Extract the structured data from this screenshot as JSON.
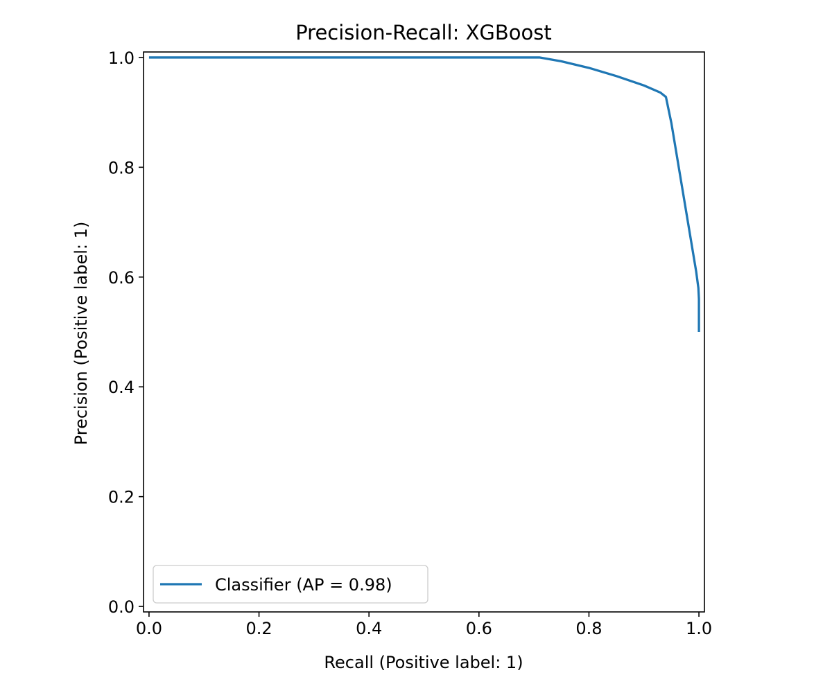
{
  "chart_data": {
    "type": "line",
    "title": "Precision-Recall: XGBoost",
    "xlabel": "Recall (Positive label: 1)",
    "ylabel": "Precision (Positive label: 1)",
    "xlim": [
      -0.01,
      1.01
    ],
    "ylim": [
      -0.01,
      1.01
    ],
    "xticks": [
      "0.0",
      "0.2",
      "0.4",
      "0.6",
      "0.8",
      "1.0"
    ],
    "yticks": [
      "0.0",
      "0.2",
      "0.4",
      "0.6",
      "0.8",
      "1.0"
    ],
    "grid": false,
    "legend_position": "lower-left",
    "series": [
      {
        "name": "Classifier (AP = 0.98)",
        "color": "#1f77b4",
        "x": [
          0.0,
          0.3,
          0.6,
          0.71,
          0.75,
          0.8,
          0.85,
          0.9,
          0.93,
          0.94,
          0.95,
          0.96,
          0.97,
          0.98,
          0.99,
          0.995,
          0.999,
          1.0,
          1.0
        ],
        "y": [
          1.0,
          1.0,
          1.0,
          1.0,
          0.993,
          0.981,
          0.966,
          0.949,
          0.936,
          0.928,
          0.88,
          0.82,
          0.76,
          0.7,
          0.64,
          0.61,
          0.58,
          0.56,
          0.5
        ]
      }
    ]
  }
}
